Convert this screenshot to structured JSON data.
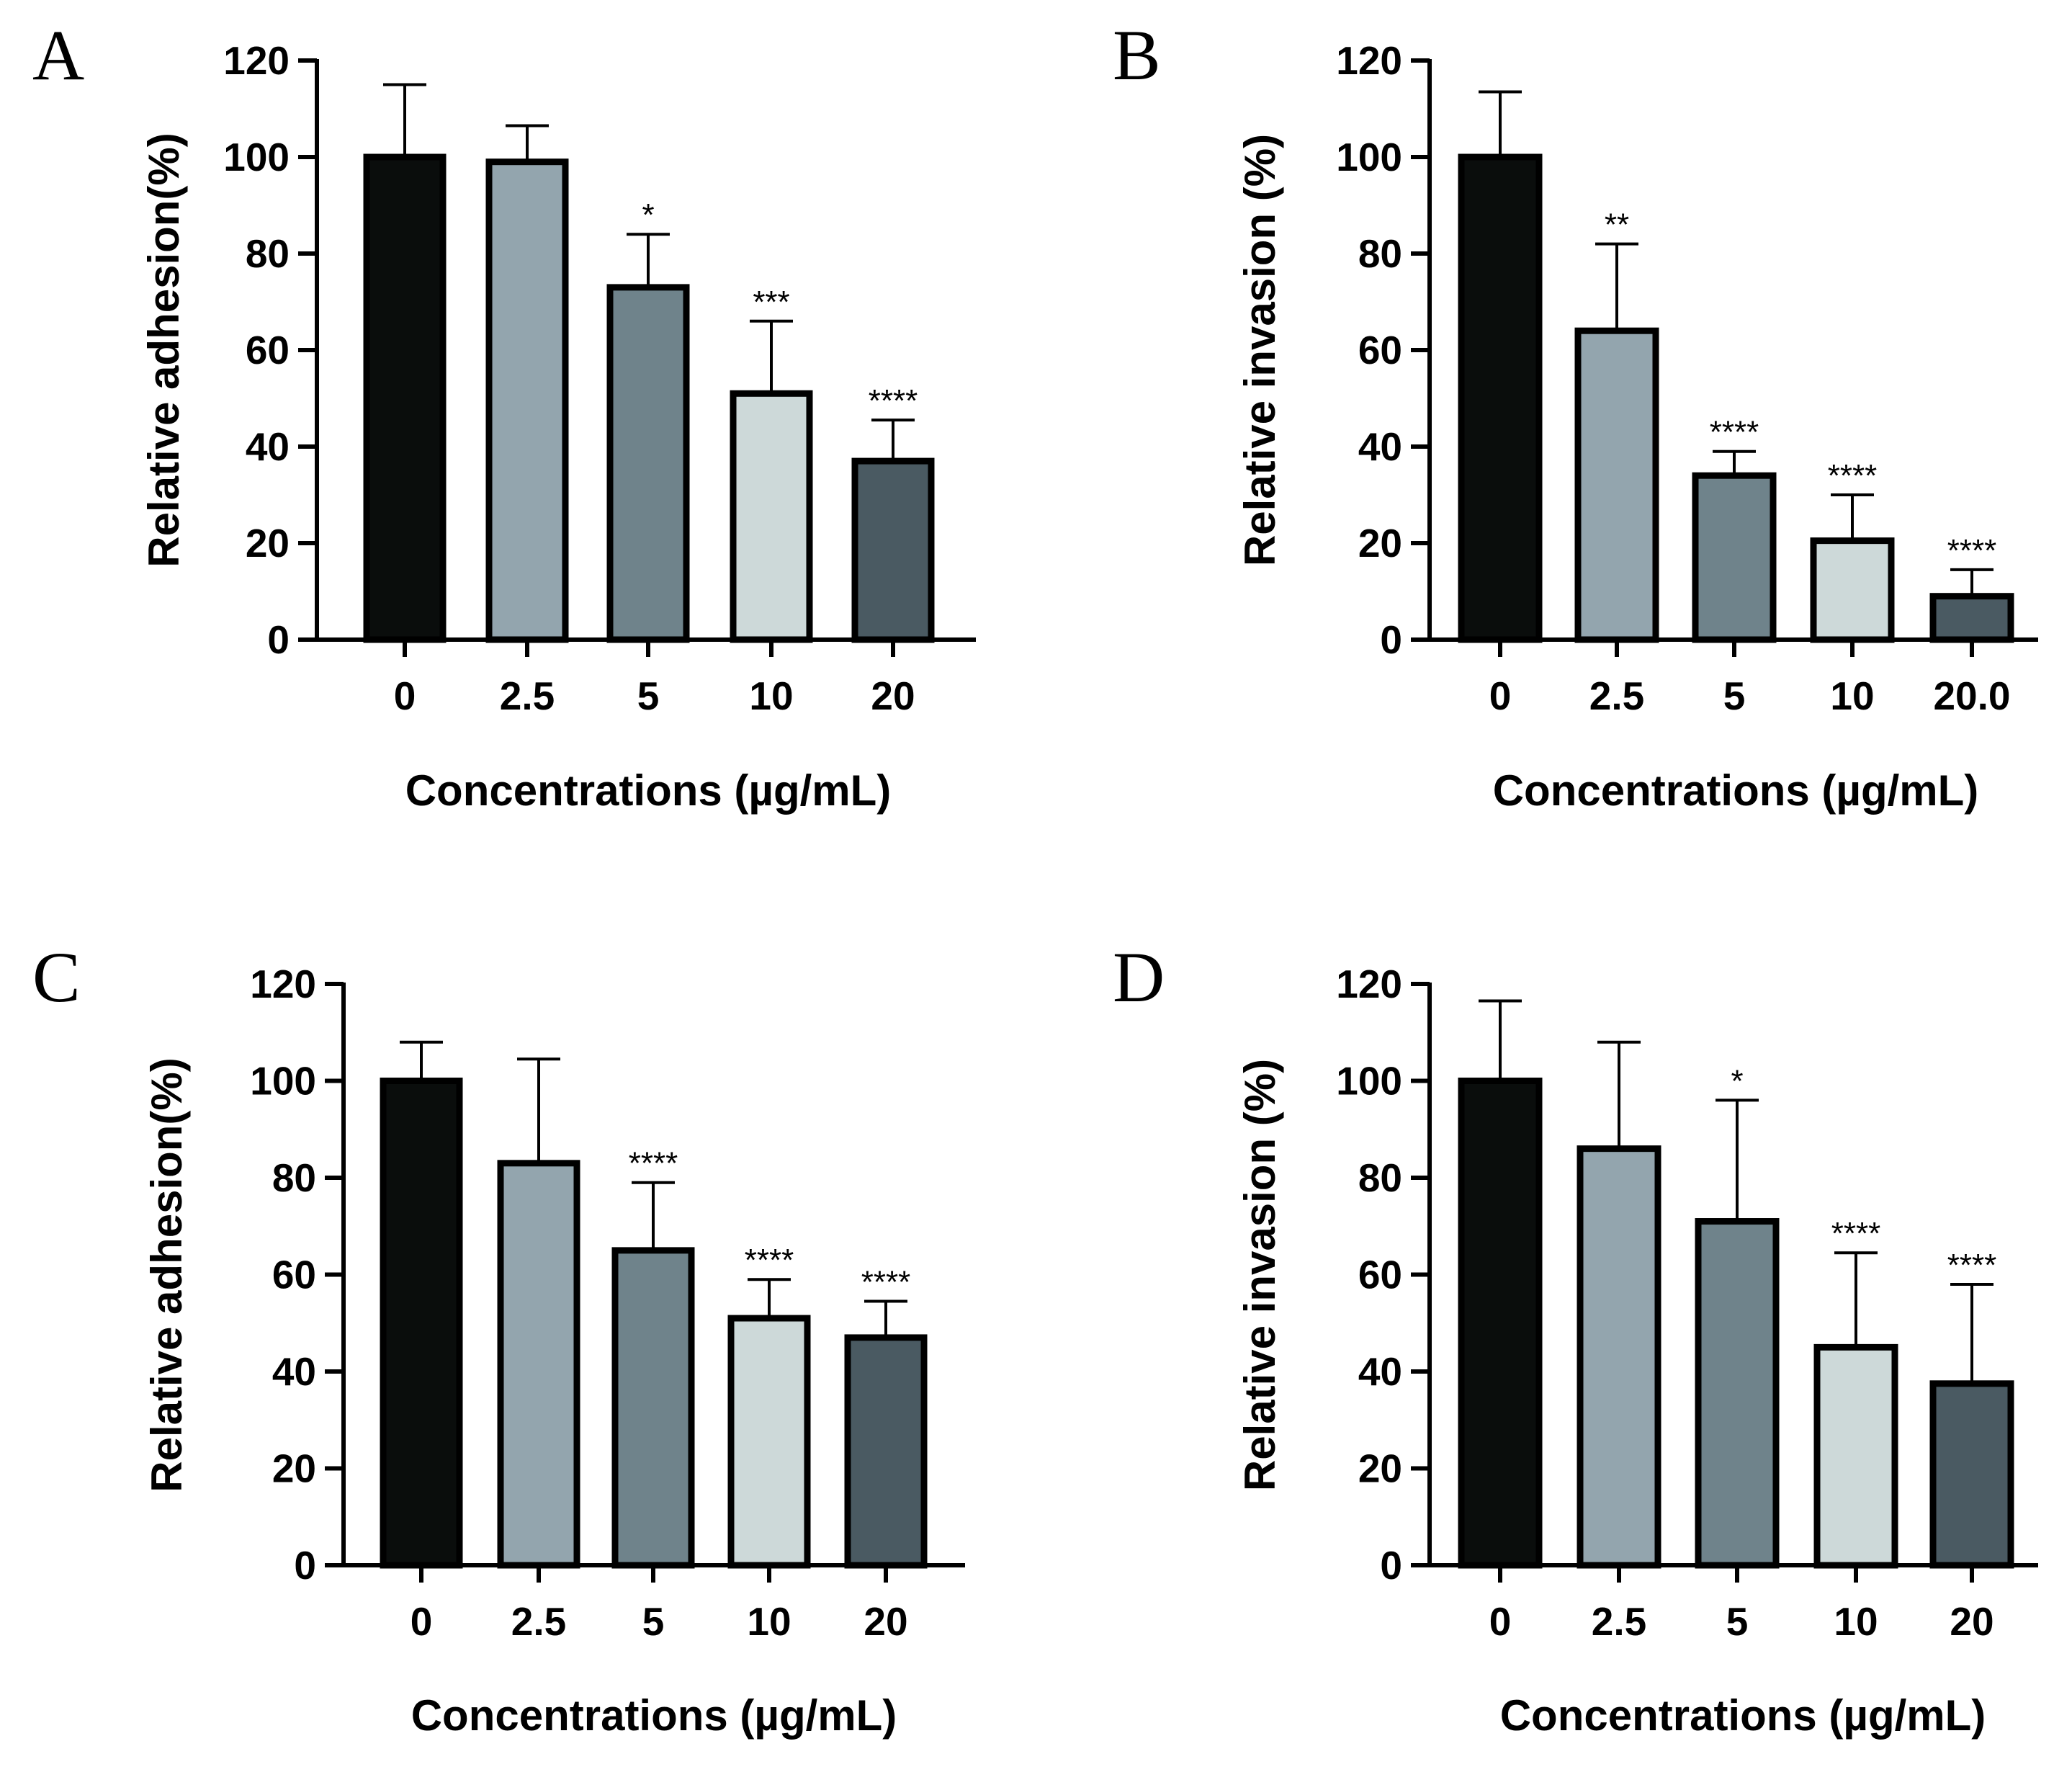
{
  "chart_data": [
    {
      "panel": "A",
      "type": "bar",
      "categories": [
        "0",
        "2.5",
        "5",
        "10",
        "20"
      ],
      "values": [
        100,
        99,
        73,
        51,
        37
      ],
      "errors": [
        15,
        7.5,
        11,
        15,
        8.5
      ],
      "significance": [
        "",
        "",
        "*",
        "***",
        "****"
      ],
      "colors": [
        "#0a0d0c",
        "#93a5ae",
        "#6f838b",
        "#cdd9d9",
        "#4a5a62"
      ],
      "xlabel": "Concentrations (µg/mL)",
      "ylabel": "Relative adhesion(%)",
      "ylim": [
        0,
        120
      ],
      "yticks": [
        0,
        20,
        40,
        60,
        80,
        100,
        120
      ],
      "grid": false,
      "legend": "none"
    },
    {
      "panel": "B",
      "type": "bar",
      "categories": [
        "0",
        "2.5",
        "5",
        "10",
        "20.0"
      ],
      "values": [
        100,
        64,
        34,
        20.5,
        9
      ],
      "errors": [
        13.5,
        18,
        5,
        9.5,
        5.5
      ],
      "significance": [
        "",
        "**",
        "****",
        "****",
        "****"
      ],
      "colors": [
        "#0a0d0c",
        "#93a5ae",
        "#6f838b",
        "#cdd9d9",
        "#4a5a62"
      ],
      "xlabel": "Concentrations (µg/mL)",
      "ylabel": "Relative invasion (%)",
      "ylim": [
        0,
        120
      ],
      "yticks": [
        0,
        20,
        40,
        60,
        80,
        100,
        120
      ],
      "grid": false,
      "legend": "none"
    },
    {
      "panel": "C",
      "type": "bar",
      "categories": [
        "0",
        "2.5",
        "5",
        "10",
        "20"
      ],
      "values": [
        100,
        83,
        65,
        51,
        47
      ],
      "errors": [
        8,
        21.5,
        14,
        8,
        7.5
      ],
      "significance": [
        "",
        "",
        "****",
        "****",
        "****"
      ],
      "colors": [
        "#0a0d0c",
        "#93a5ae",
        "#6f838b",
        "#cdd9d9",
        "#4a5a62"
      ],
      "xlabel": "Concentrations (µg/mL)",
      "ylabel": "Relative adhesion(%)",
      "ylim": [
        0,
        120
      ],
      "yticks": [
        0,
        20,
        40,
        60,
        80,
        100,
        120
      ],
      "grid": false,
      "legend": "none"
    },
    {
      "panel": "D",
      "type": "bar",
      "categories": [
        "0",
        "2.5",
        "5",
        "10",
        "20"
      ],
      "values": [
        100,
        86,
        71,
        45,
        37.5
      ],
      "errors": [
        16.5,
        22,
        25,
        19.5,
        20.5
      ],
      "significance": [
        "",
        "",
        "*",
        "****",
        "****"
      ],
      "colors": [
        "#0a0d0c",
        "#93a5ae",
        "#6f838b",
        "#cdd9d9",
        "#4a5a62"
      ],
      "xlabel": "Concentrations (µg/mL)",
      "ylabel": "Relative invasion (%)",
      "ylim": [
        0,
        120
      ],
      "yticks": [
        0,
        20,
        40,
        60,
        80,
        100,
        120
      ],
      "grid": false,
      "legend": "none"
    }
  ]
}
